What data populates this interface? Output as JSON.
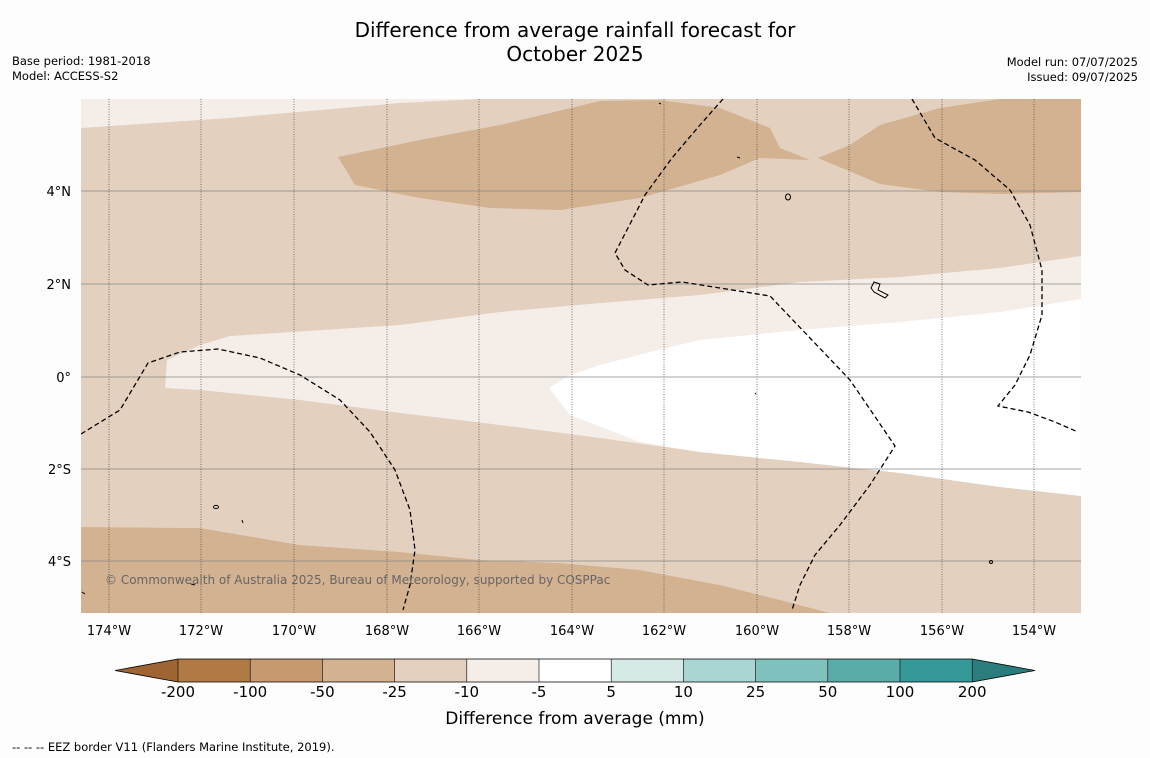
{
  "title": {
    "line1": "Difference from average rainfall forecast for",
    "line2": "October 2025"
  },
  "meta_left": {
    "base_period": "Base period: 1981-2018",
    "model": "Model: ACCESS-S2"
  },
  "meta_right": {
    "model_run": "Model run: 07/07/2025",
    "issued": "Issued: 09/07/2025"
  },
  "map": {
    "lat_labels": [
      "4°N",
      "2°N",
      "0°",
      "2°S",
      "4°S"
    ],
    "lon_labels": [
      "174°W",
      "172°W",
      "170°W",
      "168°W",
      "166°W",
      "164°W",
      "162°W",
      "160°W",
      "158°W",
      "156°W",
      "154°W"
    ],
    "copyright": "© Commonwealth of Australia 2025, Bureau of Meteorology, supported by COSPPac",
    "colors": {
      "minus_50_to_minus_25": "#d3b292",
      "minus_25_to_minus_10": "#e3d0bf",
      "minus_10_to_minus_5": "#f5ede8",
      "minus_5_to_5": "#ffffff"
    }
  },
  "colorbar": {
    "title": "Difference from average (mm)",
    "ticks": [
      "-200",
      "-100",
      "-50",
      "-25",
      "-10",
      "-5",
      "5",
      "10",
      "25",
      "50",
      "100",
      "200"
    ],
    "colors": [
      "#9e6431",
      "#b07a45",
      "#c6996f",
      "#d3b292",
      "#e3d0bf",
      "#f5ede8",
      "#ffffff",
      "#d5e9e7",
      "#a9d5d3",
      "#80c2be",
      "#5aacaa",
      "#35999a",
      "#2a7d7c"
    ]
  },
  "footer_note": "--  --  -- EEZ border V11 (Flanders Marine Institute, 2019)."
}
